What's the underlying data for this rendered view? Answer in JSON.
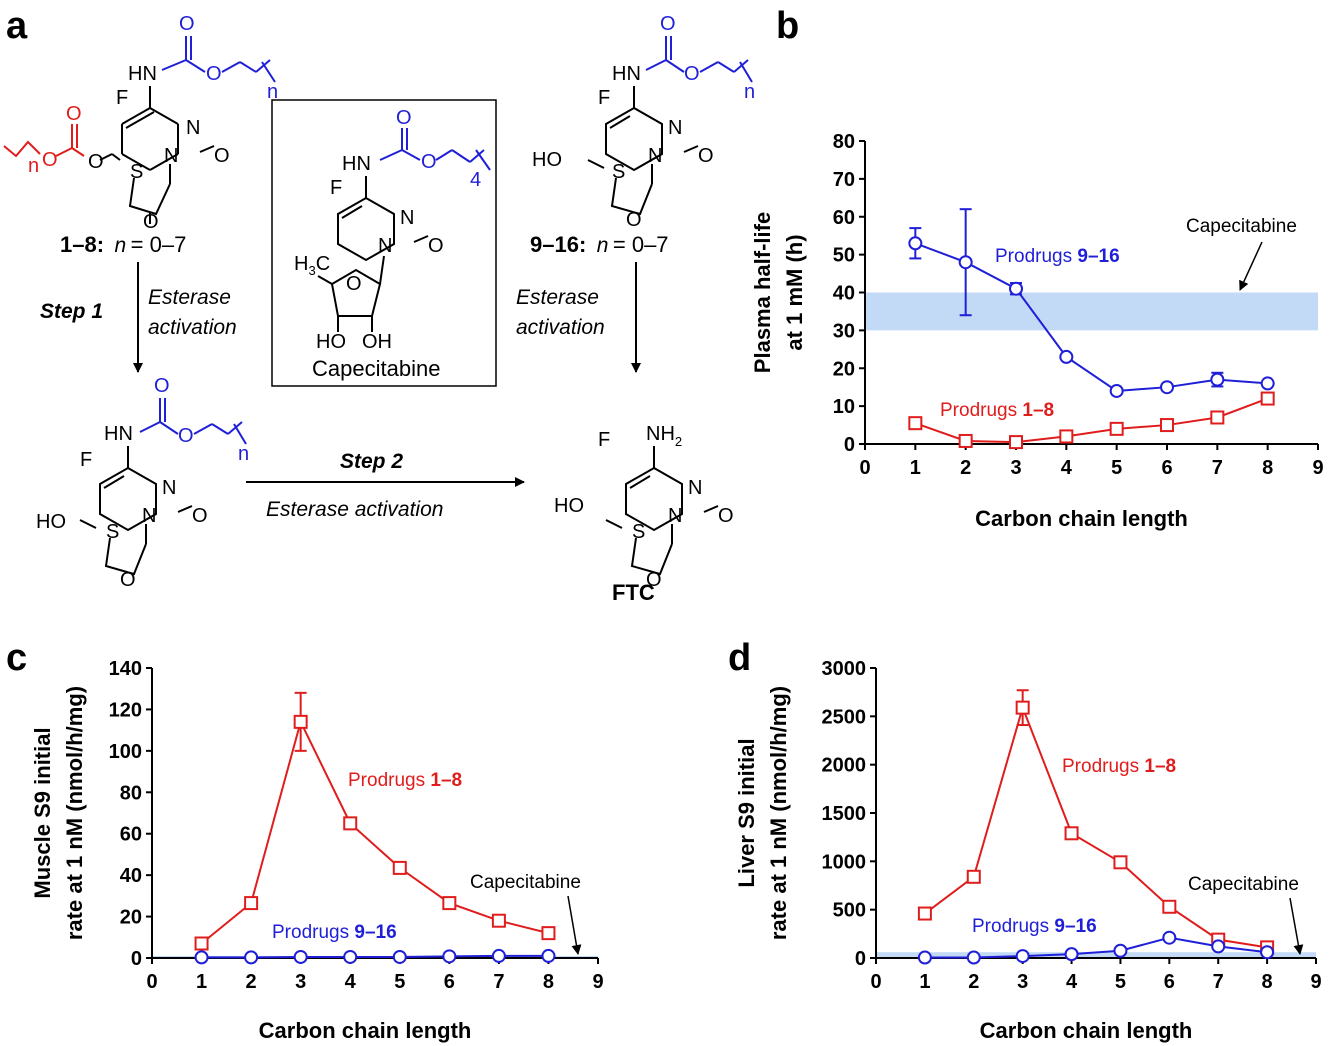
{
  "panel_a": {
    "label": "a",
    "compound_1_8": {
      "ids": "1–8:",
      "n_label": "n",
      "range": " = 0–7"
    },
    "compound_9_16": {
      "ids": "9–16:",
      "n_label": "n",
      "range": " = 0–7"
    },
    "capecitabine_name": "Capecitabine",
    "ftc_name": "FTC",
    "step1_label": "Step 1",
    "step2_label": "Step 2",
    "esterase_line1": "Esterase",
    "esterase_line2": "activation",
    "esterase_full": "Esterase activation",
    "atoms": {
      "F": "F",
      "N": "N",
      "O": "O",
      "S": "S",
      "HN": "HN",
      "HO": "HO",
      "OH": "OH",
      "n": "n",
      "four": "4",
      "H3C": "H",
      "three": "3",
      "C": "C",
      "NH": "NH",
      "two": "2"
    }
  },
  "chart_data": [
    {
      "panel_label": "b",
      "type": "line",
      "title": "",
      "xlabel": "Carbon chain length",
      "ylabel": "Plasma half-life",
      "ylabel2": "at 1 mM (h)",
      "xlim": [
        0,
        9
      ],
      "ylim": [
        0,
        80
      ],
      "xticks": [
        "0",
        "1",
        "2",
        "3",
        "4",
        "5",
        "6",
        "7",
        "8",
        "9"
      ],
      "yticks": [
        "0",
        "10",
        "20",
        "30",
        "40",
        "50",
        "60",
        "70",
        "80"
      ],
      "capecitabine": {
        "label": "Capecitabine",
        "band": [
          30,
          40
        ]
      },
      "series": [
        {
          "name": "Prodrugs ",
          "ids": "9–16",
          "color": "#1f1fd8",
          "marker": "circle",
          "x": [
            1,
            2,
            3,
            4,
            5,
            6,
            7,
            8
          ],
          "values": [
            53,
            48,
            41,
            23,
            14,
            15,
            17,
            16
          ],
          "err": [
            4,
            14,
            1.5,
            0,
            0,
            0,
            1.8,
            0
          ]
        },
        {
          "name": "Prodrugs ",
          "ids": "1–8",
          "color": "#e01d1d",
          "marker": "square",
          "x": [
            1,
            2,
            3,
            4,
            5,
            6,
            7,
            8
          ],
          "values": [
            5.5,
            0.8,
            0.5,
            2,
            4,
            5,
            7,
            12
          ],
          "err": [
            0,
            0,
            0,
            0,
            0,
            0,
            0,
            0
          ]
        }
      ]
    },
    {
      "panel_label": "c",
      "type": "line",
      "title": "",
      "xlabel": "Carbon chain  length",
      "ylabel": "Muscle S9 initial",
      "ylabel2": "rate at 1 nM (nmol/h/mg)",
      "xlim": [
        0,
        9
      ],
      "ylim": [
        0,
        140
      ],
      "xticks": [
        "0",
        "1",
        "2",
        "3",
        "4",
        "5",
        "6",
        "7",
        "8",
        "9"
      ],
      "yticks": [
        "0",
        "20",
        "40",
        "60",
        "80",
        "100",
        "120",
        "140"
      ],
      "capecitabine": {
        "label": "Capecitabine",
        "band": [
          0,
          1
        ]
      },
      "series": [
        {
          "name": "Prodrugs ",
          "ids": "1–8",
          "color": "#e01d1d",
          "marker": "square",
          "x": [
            1,
            2,
            3,
            4,
            5,
            6,
            7,
            8
          ],
          "values": [
            7,
            26.5,
            114,
            65,
            43.5,
            26.5,
            18,
            12
          ],
          "err": [
            0,
            0,
            14,
            0,
            0,
            0,
            0,
            0
          ]
        },
        {
          "name": "Prodrugs ",
          "ids": "9–16",
          "color": "#1f1fd8",
          "marker": "circle",
          "x": [
            1,
            2,
            3,
            4,
            5,
            6,
            7,
            8
          ],
          "values": [
            0.3,
            0.3,
            0.5,
            0.5,
            0.5,
            0.8,
            1,
            1
          ],
          "err": [
            0,
            0,
            0,
            0,
            0,
            0,
            0,
            0
          ]
        }
      ]
    },
    {
      "panel_label": "d",
      "type": "line",
      "title": "",
      "xlabel": "Carbon chain  length",
      "ylabel": "Liver S9 initial",
      "ylabel2": "rate at 1 nM (nmol/h/mg)",
      "xlim": [
        0,
        9
      ],
      "ylim": [
        0,
        3000
      ],
      "xticks": [
        "0",
        "1",
        "2",
        "3",
        "4",
        "5",
        "6",
        "7",
        "8",
        "9"
      ],
      "yticks": [
        "0",
        "500",
        "1000",
        "1500",
        "2000",
        "2500",
        "3000"
      ],
      "capecitabine": {
        "label": "Capecitabine",
        "band": [
          0,
          60
        ]
      },
      "series": [
        {
          "name": "Prodrugs ",
          "ids": "1–8",
          "color": "#e01d1d",
          "marker": "square",
          "x": [
            1,
            2,
            3,
            4,
            5,
            6,
            7,
            8
          ],
          "values": [
            460,
            840,
            2590,
            1290,
            990,
            530,
            190,
            110
          ],
          "err": [
            0,
            0,
            180,
            0,
            0,
            0,
            0,
            0
          ]
        },
        {
          "name": "Prodrugs ",
          "ids": "9–16",
          "color": "#1f1fd8",
          "marker": "circle",
          "x": [
            1,
            2,
            3,
            4,
            5,
            6,
            7,
            8
          ],
          "values": [
            5,
            5,
            20,
            40,
            75,
            210,
            120,
            60
          ],
          "err": [
            0,
            0,
            0,
            0,
            0,
            0,
            0,
            0
          ]
        }
      ]
    }
  ]
}
